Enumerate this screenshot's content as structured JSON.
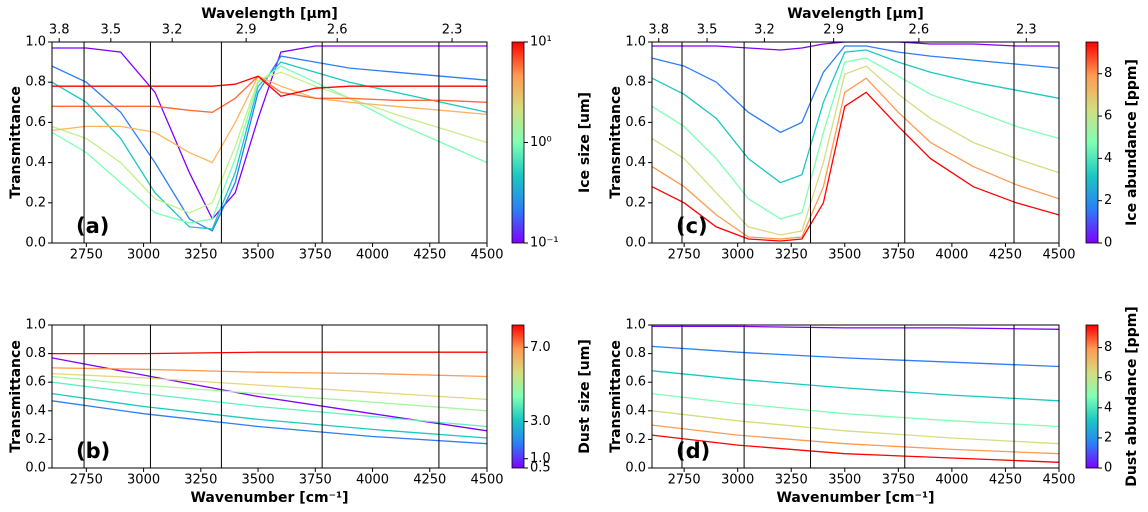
{
  "chart_data": [
    {
      "type": "line",
      "x2label": "Wavelength [μm]",
      "ylabel": "Transmittance",
      "annotation": "(a)",
      "xlim": [
        2600,
        4500
      ],
      "xticks": [
        2750,
        3000,
        3250,
        3500,
        3750,
        4000,
        4250,
        4500
      ],
      "x2lim": [
        3.846,
        2.222
      ],
      "x2scale": "reciprocal",
      "x2ticks": [
        3.8,
        3.5,
        3.2,
        2.9,
        2.6,
        2.3
      ],
      "ylim": [
        0,
        1
      ],
      "yticks": [
        {
          "value": 0,
          "label": "0.0"
        },
        0.2,
        0.4,
        0.6,
        0.8,
        {
          "value": 1,
          "label": "1.0"
        }
      ],
      "vlines": [
        2740,
        3030,
        3340,
        3780,
        4290
      ],
      "x": [
        2600,
        2750,
        2900,
        3050,
        3200,
        3300,
        3400,
        3500,
        3600,
        3750,
        3900,
        4100,
        4300,
        4500
      ],
      "series": [
        {
          "color": "#8000ff",
          "values": [
            0.97,
            0.97,
            0.95,
            0.75,
            0.35,
            0.12,
            0.25,
            0.62,
            0.95,
            0.98,
            0.98,
            0.98,
            0.98,
            0.98
          ]
        },
        {
          "color": "#2c7ef7",
          "values": [
            0.88,
            0.8,
            0.65,
            0.4,
            0.12,
            0.06,
            0.3,
            0.75,
            0.93,
            0.9,
            0.87,
            0.85,
            0.83,
            0.81
          ]
        },
        {
          "color": "#1ac7c2",
          "values": [
            0.8,
            0.7,
            0.52,
            0.25,
            0.08,
            0.07,
            0.35,
            0.78,
            0.9,
            0.85,
            0.8,
            0.75,
            0.7,
            0.65
          ]
        },
        {
          "color": "#80ffb4",
          "values": [
            0.55,
            0.45,
            0.3,
            0.15,
            0.1,
            0.12,
            0.42,
            0.8,
            0.88,
            0.8,
            0.72,
            0.6,
            0.5,
            0.4
          ]
        },
        {
          "color": "#c6ef8a",
          "values": [
            0.58,
            0.52,
            0.4,
            0.22,
            0.15,
            0.2,
            0.48,
            0.81,
            0.85,
            0.78,
            0.72,
            0.64,
            0.57,
            0.5
          ]
        },
        {
          "color": "#ffb360",
          "values": [
            0.56,
            0.58,
            0.58,
            0.55,
            0.45,
            0.4,
            0.6,
            0.83,
            0.78,
            0.72,
            0.7,
            0.68,
            0.66,
            0.64
          ]
        },
        {
          "color": "#ff6a36",
          "values": [
            0.68,
            0.68,
            0.68,
            0.68,
            0.66,
            0.65,
            0.72,
            0.83,
            0.75,
            0.72,
            0.72,
            0.71,
            0.71,
            0.7
          ]
        },
        {
          "color": "#ff0000",
          "values": [
            0.78,
            0.78,
            0.78,
            0.78,
            0.78,
            0.78,
            0.79,
            0.83,
            0.73,
            0.77,
            0.78,
            0.78,
            0.78,
            0.78
          ]
        }
      ],
      "colorbar": {
        "label": "Ice size [um]",
        "scale": "log",
        "clim": [
          0.1,
          10
        ],
        "ticks": [
          {
            "value": 0.1,
            "label": "10⁻¹"
          },
          {
            "value": 1,
            "label": "10⁰"
          },
          {
            "value": 10,
            "label": "10¹"
          }
        ],
        "colormap": [
          "#8000ff",
          "#2c7ef7",
          "#1ac7c2",
          "#80ffb4",
          "#d4dd80",
          "#ff9a52",
          "#ff0000"
        ]
      }
    },
    {
      "type": "line",
      "xlabel": "Wavenumber [cm⁻¹]",
      "ylabel": "Transmittance",
      "annotation": "(b)",
      "xlim": [
        2600,
        4500
      ],
      "xticks": [
        2750,
        3000,
        3250,
        3500,
        3750,
        4000,
        4250,
        4500
      ],
      "ylim": [
        0,
        1
      ],
      "yticks": [
        {
          "value": 0,
          "label": "0.0"
        },
        0.2,
        0.4,
        0.6,
        0.8,
        {
          "value": 1,
          "label": "1.0"
        }
      ],
      "vlines": [
        2740,
        3030,
        3340,
        3780,
        4290
      ],
      "x": [
        2600,
        3000,
        3500,
        4000,
        4500
      ],
      "series": [
        {
          "color": "#8000ff",
          "values": [
            0.77,
            0.65,
            0.5,
            0.38,
            0.26
          ]
        },
        {
          "color": "#2c7ef7",
          "values": [
            0.47,
            0.38,
            0.29,
            0.22,
            0.17
          ]
        },
        {
          "color": "#1ac7c2",
          "values": [
            0.52,
            0.43,
            0.34,
            0.27,
            0.21
          ]
        },
        {
          "color": "#5ff0c4",
          "values": [
            0.6,
            0.52,
            0.43,
            0.36,
            0.29
          ]
        },
        {
          "color": "#a8f59e",
          "values": [
            0.64,
            0.58,
            0.52,
            0.46,
            0.4
          ]
        },
        {
          "color": "#e6d67c",
          "values": [
            0.66,
            0.63,
            0.58,
            0.53,
            0.48
          ]
        },
        {
          "color": "#ff9a52",
          "values": [
            0.7,
            0.69,
            0.67,
            0.66,
            0.64
          ]
        },
        {
          "color": "#ff0000",
          "values": [
            0.8,
            0.8,
            0.81,
            0.81,
            0.81
          ]
        }
      ],
      "colorbar": {
        "label": "Dust size [um]",
        "scale": "linear",
        "clim": [
          0.5,
          8.2
        ],
        "ticks": [
          0.5,
          {
            "value": 1,
            "label": "1.0"
          },
          {
            "value": 3,
            "label": "3.0"
          },
          {
            "value": 7,
            "label": "7.0"
          }
        ],
        "colormap": [
          "#8000ff",
          "#2c7ef7",
          "#1ac7c2",
          "#80ffb4",
          "#d4dd80",
          "#ff9a52",
          "#ff0000"
        ]
      }
    },
    {
      "type": "line",
      "x2label": "Wavelength [μm]",
      "ylabel": "Transmittance",
      "annotation": "(c)",
      "xlim": [
        2600,
        4500
      ],
      "xticks": [
        2750,
        3000,
        3250,
        3500,
        3750,
        4000,
        4250,
        4500
      ],
      "x2lim": [
        3.846,
        2.222
      ],
      "x2scale": "reciprocal",
      "x2ticks": [
        3.8,
        3.5,
        3.2,
        2.9,
        2.6,
        2.3
      ],
      "ylim": [
        0,
        1
      ],
      "yticks": [
        {
          "value": 0,
          "label": "0.0"
        },
        0.2,
        0.4,
        0.6,
        0.8,
        {
          "value": 1,
          "label": "1.0"
        }
      ],
      "vlines": [
        2740,
        3030,
        3340,
        3780,
        4290
      ],
      "x": [
        2600,
        2750,
        2900,
        3050,
        3200,
        3300,
        3400,
        3500,
        3600,
        3750,
        3900,
        4100,
        4300,
        4500
      ],
      "series": [
        {
          "color": "#8000ff",
          "values": [
            0.98,
            0.98,
            0.98,
            0.97,
            0.96,
            0.97,
            0.99,
            1.0,
            1.0,
            1.0,
            0.99,
            0.99,
            0.98,
            0.98
          ]
        },
        {
          "color": "#2c7ef7",
          "values": [
            0.92,
            0.88,
            0.8,
            0.65,
            0.55,
            0.6,
            0.85,
            0.98,
            0.98,
            0.95,
            0.93,
            0.91,
            0.89,
            0.87
          ]
        },
        {
          "color": "#1ac7c2",
          "values": [
            0.82,
            0.74,
            0.62,
            0.42,
            0.3,
            0.34,
            0.7,
            0.95,
            0.96,
            0.9,
            0.85,
            0.8,
            0.76,
            0.72
          ]
        },
        {
          "color": "#80ffb4",
          "values": [
            0.68,
            0.58,
            0.42,
            0.22,
            0.12,
            0.15,
            0.55,
            0.9,
            0.92,
            0.83,
            0.74,
            0.66,
            0.58,
            0.52
          ]
        },
        {
          "color": "#d4dd80",
          "values": [
            0.52,
            0.42,
            0.25,
            0.08,
            0.04,
            0.06,
            0.4,
            0.84,
            0.88,
            0.74,
            0.62,
            0.5,
            0.42,
            0.35
          ]
        },
        {
          "color": "#ff9a52",
          "values": [
            0.38,
            0.28,
            0.14,
            0.03,
            0.02,
            0.03,
            0.28,
            0.75,
            0.82,
            0.65,
            0.5,
            0.38,
            0.29,
            0.22
          ]
        },
        {
          "color": "#ff0000",
          "values": [
            0.28,
            0.2,
            0.08,
            0.02,
            0.01,
            0.02,
            0.2,
            0.68,
            0.75,
            0.58,
            0.42,
            0.28,
            0.2,
            0.14
          ]
        }
      ],
      "colorbar": {
        "label": "Ice abundance [ppm]",
        "scale": "linear",
        "clim": [
          0,
          9.5
        ],
        "ticks": [
          0,
          2,
          4,
          6,
          8
        ],
        "colormap": [
          "#8000ff",
          "#2c7ef7",
          "#1ac7c2",
          "#80ffb4",
          "#d4dd80",
          "#ff9a52",
          "#ff0000"
        ]
      }
    },
    {
      "type": "line",
      "xlabel": "Wavenumber [cm⁻¹]",
      "ylabel": "Transmittance",
      "annotation": "(d)",
      "xlim": [
        2600,
        4500
      ],
      "xticks": [
        2750,
        3000,
        3250,
        3500,
        3750,
        4000,
        4250,
        4500
      ],
      "ylim": [
        0,
        1
      ],
      "yticks": [
        {
          "value": 0,
          "label": "0.0"
        },
        0.2,
        0.4,
        0.6,
        0.8,
        {
          "value": 1,
          "label": "1.0"
        }
      ],
      "vlines": [
        2740,
        3030,
        3340,
        3780,
        4290
      ],
      "x": [
        2600,
        3000,
        3500,
        4000,
        4500
      ],
      "series": [
        {
          "color": "#8000ff",
          "values": [
            0.99,
            0.99,
            0.98,
            0.98,
            0.97
          ]
        },
        {
          "color": "#2c7ef7",
          "values": [
            0.85,
            0.81,
            0.77,
            0.74,
            0.71
          ]
        },
        {
          "color": "#1ac7c2",
          "values": [
            0.68,
            0.62,
            0.56,
            0.51,
            0.47
          ]
        },
        {
          "color": "#80ffb4",
          "values": [
            0.52,
            0.45,
            0.38,
            0.33,
            0.29
          ]
        },
        {
          "color": "#d4dd80",
          "values": [
            0.4,
            0.33,
            0.26,
            0.21,
            0.17
          ]
        },
        {
          "color": "#ff9a52",
          "values": [
            0.3,
            0.23,
            0.17,
            0.13,
            0.1
          ]
        },
        {
          "color": "#ff0000",
          "values": [
            0.23,
            0.16,
            0.1,
            0.07,
            0.04
          ]
        }
      ],
      "colorbar": {
        "label": "Dust abundance [ppm]",
        "scale": "linear",
        "clim": [
          0,
          9.5
        ],
        "ticks": [
          0,
          2,
          4,
          6,
          8
        ],
        "colormap": [
          "#8000ff",
          "#2c7ef7",
          "#1ac7c2",
          "#80ffb4",
          "#d4dd80",
          "#ff9a52",
          "#ff0000"
        ]
      }
    }
  ]
}
